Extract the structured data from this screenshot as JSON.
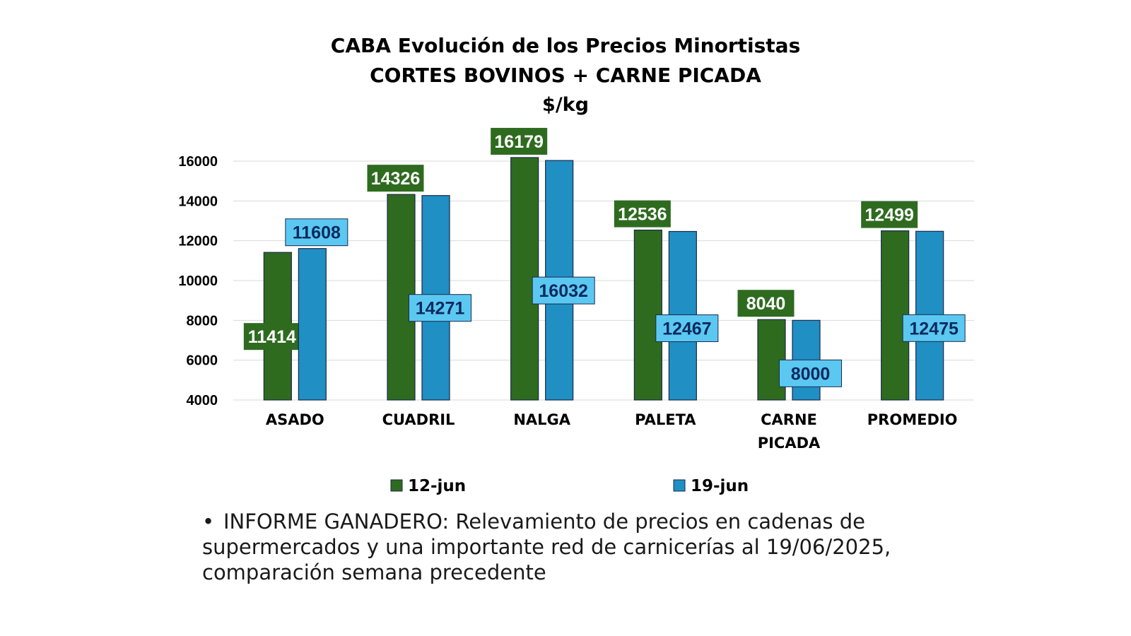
{
  "chart_data": {
    "type": "bar",
    "title": "CABA Evolución de los Precios Minortistas",
    "subtitle": "CORTES BOVINOS + CARNE PICADA",
    "unit": "$/kg",
    "categories": [
      [
        "ASADO"
      ],
      [
        "CUADRIL"
      ],
      [
        "NALGA"
      ],
      [
        "PALETA"
      ],
      [
        "CARNE",
        "PICADA"
      ],
      [
        "PROMEDIO"
      ]
    ],
    "series": [
      {
        "name": "12-jun",
        "color": "#2e6b1f",
        "label_bg": "#2e6b1f",
        "label_color": "#ffffff",
        "values": [
          11414,
          14326,
          16179,
          12536,
          8040,
          12499
        ]
      },
      {
        "name": "19-jun",
        "color": "#1f8fc4",
        "label_bg": "#5bc8f2",
        "label_color": "#0b2a5e",
        "values": [
          11608,
          14271,
          16032,
          12467,
          8000,
          12475
        ]
      }
    ],
    "ylim": [
      4000,
      16000
    ],
    "yticks": [
      4000,
      6000,
      8000,
      10000,
      12000,
      14000,
      16000
    ],
    "grid": true,
    "legend_position": "bottom"
  },
  "note": {
    "bullet": "•",
    "text": "INFORME GANADERO: Relevamiento de precios en cadenas de supermercados y una importante red de carnicerías al 19/06/2025, comparación semana precedente"
  }
}
